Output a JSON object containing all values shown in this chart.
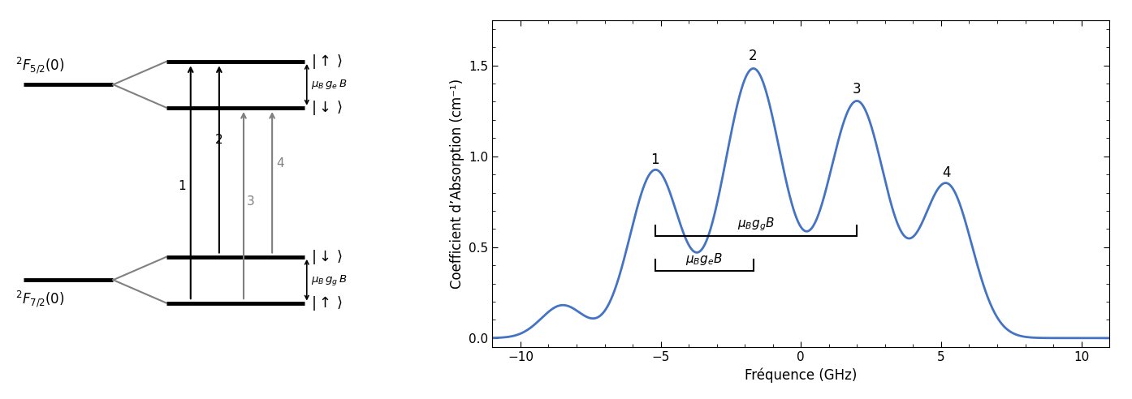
{
  "fig_width": 13.94,
  "fig_height": 4.92,
  "dpi": 100,
  "spectrum_color": "#4472C4",
  "spectrum_lw": 2.0,
  "xlabel": "Fréquence (GHz)",
  "ylabel": "Coefficient d’Absorption (cm⁻¹)",
  "xlim": [
    -11,
    11
  ],
  "ylim": [
    -0.05,
    1.75
  ],
  "xticks": [
    -10,
    -5,
    0,
    5,
    10
  ],
  "yticks": [
    0.0,
    0.5,
    1.0,
    1.5
  ],
  "label_fontsize": 12,
  "tick_fontsize": 11
}
